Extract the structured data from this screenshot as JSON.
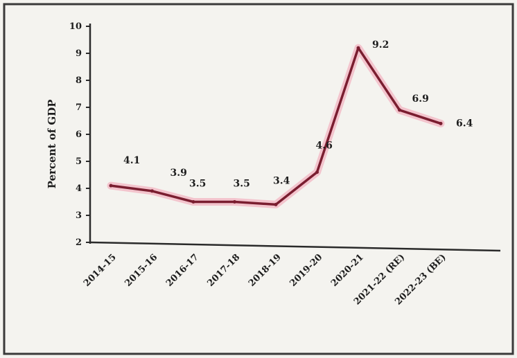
{
  "chart_data": {
    "type": "line",
    "title": "",
    "xlabel": "",
    "ylabel": "Percent of GDP",
    "ylim": [
      2,
      10
    ],
    "yticks": [
      "2",
      "3",
      "4",
      "5",
      "6",
      "7",
      "8",
      "9",
      "10"
    ],
    "categories": [
      "2014-15",
      "2015-16",
      "2016-17",
      "2017-18",
      "2018-19",
      "2019-20",
      "2020-21",
      "2021-22 (RE)",
      "2022-23 (BE)"
    ],
    "series": [
      {
        "values": [
          4.1,
          3.9,
          3.5,
          3.5,
          3.4,
          4.6,
          9.2,
          6.9,
          6.4
        ],
        "labels": [
          "4.1",
          "3.9",
          "3.5",
          "3.5",
          "3.4",
          "4.6",
          "9.2",
          "6.9",
          "6.4"
        ]
      }
    ],
    "grid": false,
    "legend": "none",
    "colors": {
      "line": "#7a1e30",
      "halo": "#f3b8c4",
      "axis": "#2a2a2a"
    }
  }
}
